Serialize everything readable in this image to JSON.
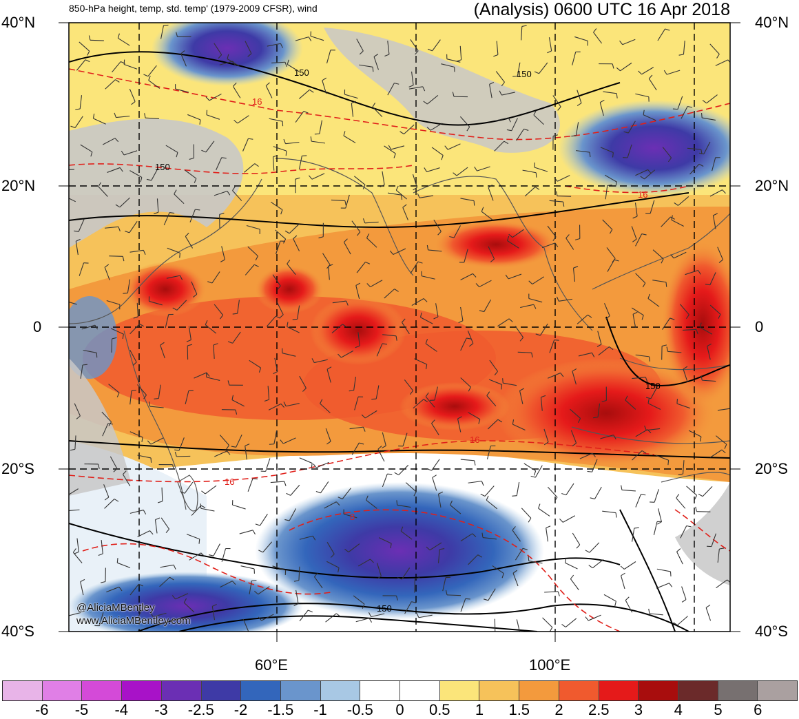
{
  "title_left": "850-hPa height, temp, std. temp' (1979-2009 CFSR), wind",
  "title_right": "(Analysis) 0600 UTC 16 Apr 2018",
  "lat_labels": [
    "40°N",
    "20°N",
    "0",
    "20°S",
    "40°S"
  ],
  "lon_labels": [
    "60°E",
    "100°E"
  ],
  "contour_labels": {
    "height": [
      "150",
      "150",
      "150",
      "150",
      "150"
    ],
    "temperature": [
      "16",
      "16",
      "16",
      "16",
      "8"
    ]
  },
  "credit": {
    "handle": "@AliciaMBentley",
    "url": "www.AliciaMBentley.com"
  },
  "colorbar": {
    "colors": [
      "#e8b4e8",
      "#e07fe6",
      "#d44ad8",
      "#a812c8",
      "#6b2fb4",
      "#3e3aa6",
      "#3366bb",
      "#6a95cc",
      "#a8c8e4",
      "#ffffff",
      "#ffffff",
      "#fbe57a",
      "#f6c25a",
      "#f39a3d",
      "#f05a2e",
      "#e51a1a",
      "#a80d0d",
      "#6b2a2a",
      "#777070",
      "#aaa0a0"
    ],
    "labels": [
      "-6",
      "-5",
      "-4",
      "-3",
      "-2.5",
      "-2",
      "-1.5",
      "-1",
      "-0.5",
      "0",
      "0.5",
      "1",
      "1.5",
      "2",
      "2.5",
      "3",
      "4",
      "5",
      "6"
    ]
  }
}
